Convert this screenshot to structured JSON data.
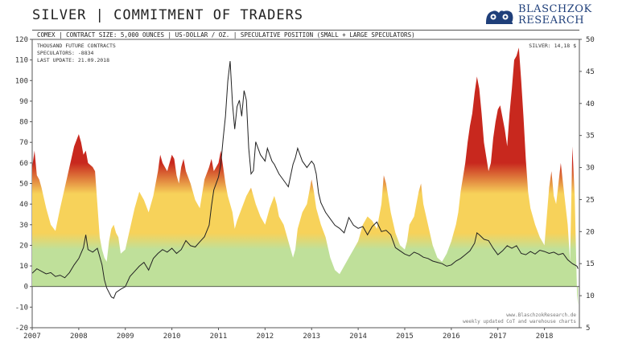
{
  "header": {
    "title": "SILVER | COMMITMENT OF TRADERS",
    "brand_line1": "BLASCHZOK",
    "brand_line2": "RESEARCH",
    "subtitle": "COMEX | CONTRACT SIZE: 5,000 OUNCES | US-DOLLAR / OZ. | SPECULATIVE POSITION (SMALL + LARGE SPECULATORS)"
  },
  "info": {
    "line1": "THOUSAND FUTURE CONTRACTS",
    "line2": "SPECULATORS:   -8834",
    "line3": "LAST UPDATE: 21.09.2018",
    "price": "SILVER: 14,18 $",
    "credit1": "www.BlaschzokResearch.de",
    "credit2": "weekly updated CoT and warehouse charts"
  },
  "colors": {
    "area_low": "#bfe09a",
    "area_mid": "#f7d25a",
    "area_high": "#c8281e",
    "area_negative": "#bfe09a",
    "price_line": "#222222",
    "brand": "#1f3f7a"
  },
  "chart_data": {
    "type": "area",
    "x_range": [
      2007.0,
      2018.75
    ],
    "x_ticks": [
      "2007",
      "2008",
      "2009",
      "2010",
      "2011",
      "2012",
      "2013",
      "2014",
      "2015",
      "2016",
      "2017",
      "2018"
    ],
    "left_axis": {
      "range": [
        -20,
        120
      ],
      "ticks": [
        -20,
        -10,
        0,
        10,
        20,
        30,
        40,
        50,
        60,
        70,
        80,
        90,
        100,
        110,
        120
      ]
    },
    "right_axis": {
      "range": [
        5,
        50
      ],
      "ticks": [
        5,
        10,
        15,
        20,
        25,
        30,
        35,
        40,
        45,
        50
      ]
    },
    "series": [
      {
        "axis": "left",
        "x": [
          2007.0,
          2007.05,
          2007.1,
          2007.15,
          2007.2,
          2007.3,
          2007.4,
          2007.5,
          2007.6,
          2007.7,
          2007.8,
          2007.9,
          2008.0,
          2008.05,
          2008.1,
          2008.15,
          2008.2,
          2008.3,
          2008.35,
          2008.4,
          2008.45,
          2008.5,
          2008.55,
          2008.6,
          2008.65,
          2008.7,
          2008.75,
          2008.8,
          2008.85,
          2008.9,
          2009.0,
          2009.1,
          2009.2,
          2009.3,
          2009.4,
          2009.5,
          2009.6,
          2009.7,
          2009.75,
          2009.8,
          2009.9,
          2010.0,
          2010.05,
          2010.1,
          2010.15,
          2010.2,
          2010.25,
          2010.3,
          2010.4,
          2010.5,
          2010.6,
          2010.7,
          2010.8,
          2010.85,
          2010.9,
          2011.0,
          2011.05,
          2011.1,
          2011.15,
          2011.2,
          2011.3,
          2011.35,
          2011.4,
          2011.5,
          2011.6,
          2011.7,
          2011.8,
          2011.9,
          2012.0,
          2012.1,
          2012.2,
          2012.25,
          2012.3,
          2012.4,
          2012.5,
          2012.6,
          2012.65,
          2012.7,
          2012.8,
          2012.9,
          2013.0,
          2013.05,
          2013.1,
          2013.2,
          2013.3,
          2013.4,
          2013.5,
          2013.6,
          2013.7,
          2013.8,
          2013.9,
          2014.0,
          2014.05,
          2014.1,
          2014.2,
          2014.3,
          2014.4,
          2014.5,
          2014.55,
          2014.6,
          2014.7,
          2014.8,
          2014.9,
          2015.0,
          2015.05,
          2015.1,
          2015.2,
          2015.3,
          2015.35,
          2015.4,
          2015.5,
          2015.6,
          2015.7,
          2015.8,
          2015.9,
          2016.0,
          2016.05,
          2016.1,
          2016.15,
          2016.2,
          2016.3,
          2016.35,
          2016.4,
          2016.45,
          2016.5,
          2016.55,
          2016.6,
          2016.65,
          2016.7,
          2016.8,
          2016.85,
          2016.9,
          2016.95,
          2017.0,
          2017.05,
          2017.1,
          2017.15,
          2017.2,
          2017.25,
          2017.3,
          2017.35,
          2017.4,
          2017.45,
          2017.5,
          2017.55,
          2017.6,
          2017.65,
          2017.7,
          2017.8,
          2017.9,
          2018.0,
          2018.05,
          2018.1,
          2018.15,
          2018.2,
          2018.25,
          2018.3,
          2018.35,
          2018.4,
          2018.45,
          2018.5,
          2018.55,
          2018.6,
          2018.65,
          2018.7,
          2018.72
        ],
        "values": [
          58,
          66,
          54,
          52,
          48,
          38,
          30,
          27,
          38,
          48,
          58,
          68,
          74,
          70,
          64,
          66,
          60,
          58,
          56,
          40,
          24,
          18,
          14,
          12,
          22,
          28,
          30,
          26,
          24,
          16,
          18,
          28,
          38,
          46,
          42,
          36,
          44,
          56,
          64,
          60,
          56,
          64,
          62,
          54,
          50,
          58,
          62,
          56,
          50,
          42,
          38,
          52,
          58,
          62,
          56,
          60,
          66,
          58,
          50,
          44,
          36,
          28,
          32,
          38,
          44,
          48,
          40,
          34,
          30,
          38,
          44,
          40,
          34,
          30,
          22,
          14,
          18,
          28,
          36,
          40,
          52,
          46,
          38,
          30,
          24,
          14,
          8,
          6,
          10,
          14,
          18,
          22,
          26,
          30,
          34,
          32,
          28,
          40,
          54,
          50,
          36,
          26,
          20,
          18,
          22,
          30,
          34,
          46,
          50,
          40,
          30,
          20,
          14,
          12,
          16,
          22,
          26,
          30,
          36,
          46,
          60,
          70,
          78,
          84,
          94,
          102,
          96,
          84,
          70,
          56,
          60,
          72,
          80,
          86,
          88,
          82,
          76,
          68,
          84,
          96,
          110,
          112,
          116,
          100,
          82,
          62,
          46,
          38,
          30,
          24,
          20,
          34,
          48,
          56,
          44,
          40,
          50,
          60,
          50,
          40,
          30,
          12,
          68,
          44,
          -4,
          -9
        ]
      },
      {
        "axis": "right",
        "x": [
          2007.0,
          2007.1,
          2007.2,
          2007.3,
          2007.4,
          2007.5,
          2007.6,
          2007.7,
          2007.8,
          2007.9,
          2008.0,
          2008.1,
          2008.15,
          2008.2,
          2008.3,
          2008.4,
          2008.5,
          2008.55,
          2008.6,
          2008.7,
          2008.75,
          2008.8,
          2008.9,
          2009.0,
          2009.1,
          2009.2,
          2009.3,
          2009.4,
          2009.5,
          2009.6,
          2009.7,
          2009.8,
          2009.9,
          2010.0,
          2010.1,
          2010.2,
          2010.3,
          2010.4,
          2010.5,
          2010.6,
          2010.7,
          2010.8,
          2010.85,
          2010.9,
          2011.0,
          2011.05,
          2011.1,
          2011.15,
          2011.2,
          2011.25,
          2011.3,
          2011.35,
          2011.4,
          2011.45,
          2011.5,
          2011.55,
          2011.6,
          2011.65,
          2011.7,
          2011.75,
          2011.8,
          2011.9,
          2012.0,
          2012.05,
          2012.1,
          2012.15,
          2012.2,
          2012.3,
          2012.4,
          2012.45,
          2012.5,
          2012.6,
          2012.65,
          2012.7,
          2012.75,
          2012.8,
          2012.9,
          2013.0,
          2013.05,
          2013.1,
          2013.15,
          2013.2,
          2013.3,
          2013.4,
          2013.5,
          2013.6,
          2013.7,
          2013.8,
          2013.9,
          2014.0,
          2014.1,
          2014.2,
          2014.3,
          2014.4,
          2014.5,
          2014.6,
          2014.7,
          2014.8,
          2014.9,
          2015.0,
          2015.1,
          2015.2,
          2015.3,
          2015.4,
          2015.5,
          2015.6,
          2015.7,
          2015.8,
          2015.9,
          2016.0,
          2016.1,
          2016.2,
          2016.3,
          2016.4,
          2016.5,
          2016.55,
          2016.6,
          2016.7,
          2016.8,
          2016.9,
          2017.0,
          2017.1,
          2017.2,
          2017.3,
          2017.4,
          2017.5,
          2017.6,
          2017.7,
          2017.8,
          2017.9,
          2018.0,
          2018.1,
          2018.2,
          2018.3,
          2018.4,
          2018.5,
          2018.6,
          2018.7,
          2018.72
        ],
        "values": [
          13.5,
          14.2,
          13.8,
          13.4,
          13.6,
          13.0,
          13.2,
          12.8,
          13.6,
          14.8,
          15.8,
          17.5,
          19.5,
          17.2,
          16.8,
          17.4,
          14.8,
          12.5,
          11.2,
          9.8,
          9.6,
          10.5,
          11.0,
          11.4,
          13.0,
          13.8,
          14.6,
          15.2,
          14.0,
          15.8,
          16.6,
          17.2,
          16.8,
          17.4,
          16.6,
          17.2,
          18.6,
          17.8,
          17.6,
          18.4,
          19.2,
          21.0,
          24.0,
          26.5,
          28.5,
          30.5,
          34.5,
          38.0,
          43.5,
          46.6,
          40.0,
          36.0,
          39.5,
          40.5,
          38.0,
          42.0,
          40.5,
          33.0,
          29.0,
          29.5,
          34.0,
          32.0,
          31.0,
          33.0,
          32.0,
          31.0,
          30.5,
          29.0,
          28.0,
          27.5,
          27.0,
          30.5,
          31.5,
          33.0,
          32.0,
          31.0,
          30.0,
          31.0,
          30.5,
          29.0,
          26.0,
          24.5,
          23.0,
          22.0,
          21.0,
          20.5,
          19.8,
          22.2,
          21.0,
          20.5,
          20.8,
          19.5,
          20.8,
          21.5,
          20.0,
          20.2,
          19.5,
          17.5,
          17.0,
          16.5,
          16.2,
          16.8,
          16.5,
          16.0,
          15.8,
          15.4,
          15.2,
          15.0,
          14.6,
          14.8,
          15.4,
          15.8,
          16.4,
          17.0,
          18.2,
          19.8,
          19.5,
          18.8,
          18.6,
          17.4,
          16.4,
          17.0,
          17.8,
          17.4,
          17.8,
          16.6,
          16.4,
          16.9,
          16.5,
          17.1,
          16.9,
          16.6,
          16.8,
          16.4,
          16.6,
          15.6,
          15.0,
          14.6,
          14.2
        ]
      }
    ]
  }
}
